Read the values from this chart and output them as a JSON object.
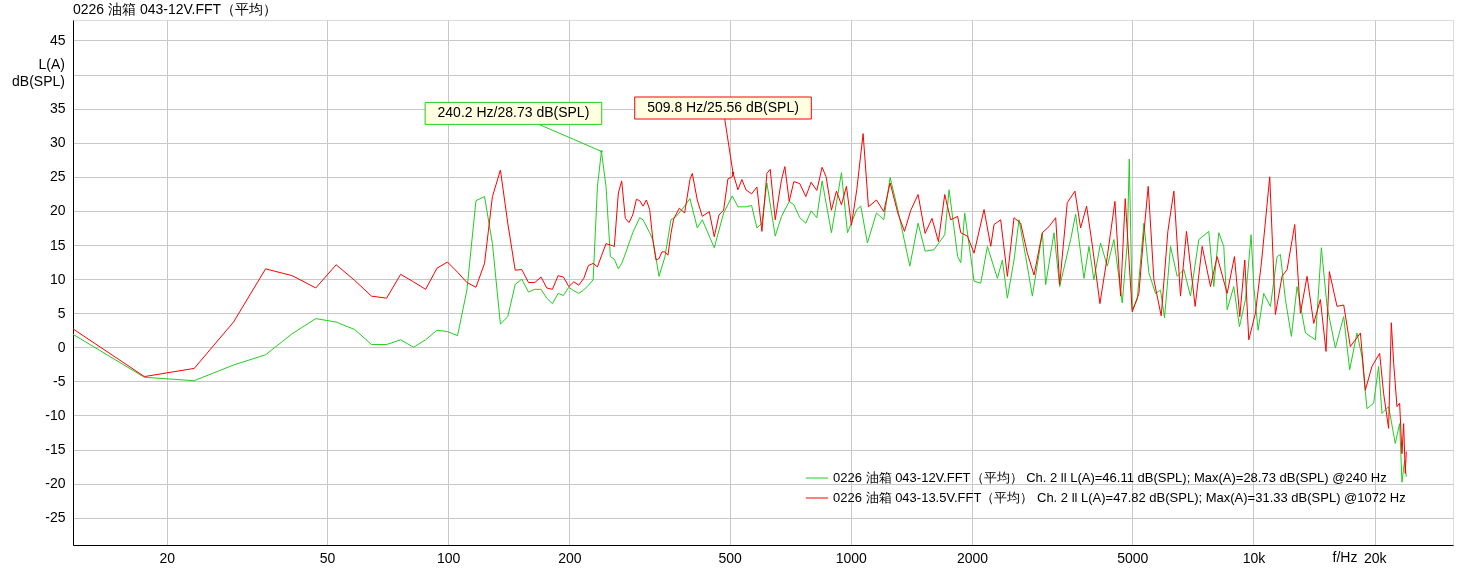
{
  "chart_data": {
    "type": "line",
    "title": "0226 油箱  043-12V.FFT（平均）",
    "xlabel": "f/Hz",
    "ylabel": "L(A) dB(SPL)",
    "xlim": [
      11.7,
      31300
    ],
    "ylim": [
      -29,
      48
    ],
    "log": "x",
    "grid": true,
    "legend": "bottom right",
    "xticks": [
      20,
      50,
      100,
      200,
      500,
      1000,
      2000,
      5000,
      {
        "value": 10000,
        "label": "10k"
      },
      {
        "value": 20000,
        "label": "20k"
      }
    ],
    "yticks": [
      -25,
      -20,
      -15,
      -10,
      -5,
      0,
      5,
      10,
      15,
      20,
      25,
      30,
      35,
      {
        "value": 40,
        "label": null
      },
      45
    ],
    "series": [
      {
        "name": "0226 油箱  043-12V.FFT（平均）  Ch. 2 ll L(A)=46.11 dB(SPL); Max(A)=28.73 dB(SPL) @240 Hz",
        "color": "#22cc22",
        "x": [
          11.7,
          17.6,
          23.4,
          29.3,
          35.2,
          41.0,
          46.9,
          52.7,
          58.6,
          64.5,
          70.3,
          76.2,
          82.0,
          87.9,
          93.8,
          99.6,
          105.5,
          111.3,
          117.2,
          123.1,
          128.8,
          134.8,
          140.6,
          146.7,
          152.3,
          158.3,
          164.1,
          170.1,
          175.7,
          181.5,
          187.5,
          193.3,
          199.3,
          205.1,
          211.0,
          217.1,
          223.0,
          229.1,
          234.8,
          240.2,
          246.6,
          252.8,
          258.6,
          264.6,
          269.7,
          275.4,
          287.3,
          299.0,
          304.7,
          316.5,
          322.6,
          333.9,
          345.5,
          357.5,
          368.6,
          380.7,
          398.5,
          415.6,
          427.6,
          445.1,
          458.0,
          483.1,
          507.6,
          524.3,
          548.8,
          566.9,
          584.4,
          601.4,
          618.8,
          648.9,
          672.8,
          703.0,
          721.9,
          746.9,
          773.0,
          796.9,
          823.2,
          848.5,
          895.0,
          947.7,
          981,
          1034.6,
          1058.5,
          1099.6,
          1157.7,
          1207.2,
          1252,
          1308,
          1401,
          1469,
          1529,
          1609,
          1711,
          1754,
          1842,
          1875,
          1918,
          1985,
          2023,
          2102,
          2184,
          2312,
          2379,
          2448,
          2543,
          2616,
          2718,
          2824,
          2990,
          3047,
          3196,
          3301,
          3515,
          3617,
          3793,
          3904,
          4015,
          4171,
          4334,
          4502,
          4722,
          4859,
          4915,
          4999,
          5144,
          5344,
          5499,
          5712,
          5877,
          6013,
          6223,
          6465,
          6716,
          6975,
          7316,
          7746,
          7970,
          8201,
          8438,
          8603,
          8934,
          9230,
          9552,
          9865,
          10018,
          10268,
          10606,
          11018,
          11445,
          11664,
          12003,
          12422,
          12832,
          13457,
          14249,
          14743,
          15235,
          15974,
          16753,
          17334,
          18076,
          18600,
          19138,
          19883,
          20458,
          20853,
          21660,
          22500,
          23068,
          23379,
          23739,
          23963
        ],
        "values": [
          1.9,
          -4.4,
          -4.9,
          -2.6,
          -1.1,
          2.0,
          4.2,
          3.7,
          2.6,
          0.4,
          0.4,
          1.1,
          0.0,
          1.1,
          2.5,
          2.3,
          1.7,
          8.4,
          21.5,
          22.1,
          15.2,
          3.4,
          4.5,
          9.2,
          10.0,
          8.1,
          8.5,
          8.5,
          7.2,
          6.4,
          7.9,
          7.6,
          8.8,
          8.3,
          7.9,
          8.4,
          9.1,
          9.9,
          23.6,
          28.73,
          23.6,
          13.3,
          12.9,
          11.5,
          12.3,
          13.7,
          16.8,
          19.0,
          18.7,
          16.8,
          15.7,
          10.4,
          13.3,
          18.7,
          19.2,
          20.2,
          21.8,
          17.5,
          18.7,
          16.3,
          14.6,
          19.7,
          22.2,
          20.6,
          20.6,
          20.8,
          17.5,
          18.2,
          24.1,
          16.3,
          19.2,
          21.4,
          20.9,
          19.0,
          18.2,
          20.0,
          19.0,
          24.4,
          16.8,
          25.6,
          16.8,
          20.2,
          20.7,
          15.3,
          19.7,
          18.7,
          24.9,
          20.2,
          11.9,
          18.2,
          14.1,
          14.3,
          16.5,
          23.1,
          13.3,
          12.4,
          19.7,
          13.3,
          9.7,
          9.4,
          14.8,
          10.1,
          12.8,
          7.2,
          12.8,
          18.7,
          13.3,
          7.5,
          16.8,
          9.2,
          16.8,
          8.9,
          15.8,
          19.5,
          10.1,
          14.8,
          9.9,
          15.3,
          11.9,
          15.8,
          6.5,
          15.3,
          27.6,
          5.5,
          7.0,
          18.2,
          10.9,
          7.9,
          8.4,
          4.3,
          14.8,
          10.4,
          11.4,
          7.5,
          15.8,
          17.0,
          8.9,
          16.8,
          14.8,
          5.5,
          8.9,
          3.0,
          7.0,
          16.5,
          8.9,
          2.5,
          7.9,
          6.0,
          13.3,
          13.6,
          7.0,
          1.6,
          8.9,
          2.1,
          1.1,
          14.6,
          6.0,
          -0.1,
          4.5,
          -3.3,
          2.1,
          -1.4,
          -9.0,
          -8.2,
          -2.8,
          -9.7,
          -8.7,
          -14.1,
          -11.2,
          -19.8,
          -16.6,
          -19.0
        ]
      },
      {
        "name": "0226 油箱  043-13.5V.FFT（平均）  Ch. 2 ll L(A)=47.82 dB(SPL); Max(A)=31.33 dB(SPL) @1072 Hz",
        "color": "#ff0000",
        "x": [
          11.7,
          17.6,
          23.4,
          29.3,
          35.2,
          41.0,
          46.9,
          52.7,
          58.6,
          64.5,
          70.3,
          76.2,
          82.0,
          87.9,
          93.8,
          99.6,
          105.5,
          111.3,
          117.2,
          123.1,
          128.8,
          134.8,
          140.6,
          146.7,
          152.3,
          158.3,
          164.1,
          170.1,
          175.7,
          181.5,
          187.5,
          193.3,
          199.3,
          205.1,
          211.0,
          217.1,
          223.0,
          229.1,
          234.8,
          240.6,
          246.6,
          252.8,
          258.6,
          264.6,
          269.7,
          275.4,
          281.3,
          287.3,
          293.4,
          299.0,
          304.7,
          310.6,
          316.5,
          322.6,
          328.2,
          333.9,
          339.6,
          345.5,
          351.4,
          357.5,
          363.0,
          375.0,
          386.6,
          398.5,
          403.9,
          415.6,
          427.6,
          445.1,
          458.0,
          470.4,
          483.1,
          495.2,
          507.6,
          509.8,
          524.3,
          536.4,
          548.8,
          566.9,
          584.4,
          601.4,
          618.8,
          630.6,
          648.9,
          672.8,
          685.7,
          703.0,
          721.9,
          746.9,
          773.0,
          796.9,
          823.2,
          848.5,
          868.2,
          895.0,
          920.9,
          947.7,
          975.2,
          1003.5,
          1034.6,
          1072.8,
          1105.9,
          1157.7,
          1207.2,
          1252,
          1308,
          1359,
          1409,
          1469,
          1529,
          1591,
          1650,
          1711,
          1770,
          1842,
          1875,
          1948,
          2023,
          2142,
          2226,
          2268,
          2356,
          2448,
          2543,
          2641,
          2744,
          2851,
          2990,
          3106,
          3227,
          3301,
          3448,
          3603,
          3721,
          3851,
          3978,
          4156,
          4334,
          4528,
          4677,
          4803,
          4999,
          5193,
          5344,
          5478,
          5658,
          5900,
          6129,
          6343,
          6588,
          6818,
          7164,
          7458,
          7821,
          8124,
          8603,
          8969,
          9247,
          9515,
          9736,
          10113,
          10466,
          10975,
          11335,
          11776,
          12120,
          12662,
          13077,
          13586,
          14112,
          14662,
          15142,
          15434,
          16126,
          16753,
          17402,
          18433,
          18958,
          19693,
          20576,
          21051,
          21660,
          21994,
          22300,
          22719,
          23068,
          23379,
          23601,
          23824,
          23963
        ],
        "values": [
          2.7,
          -4.3,
          -3.1,
          3.7,
          11.5,
          10.5,
          8.7,
          12.1,
          9.8,
          7.5,
          7.2,
          10.7,
          9.6,
          8.5,
          11.6,
          12.5,
          11.0,
          9.5,
          8.8,
          12.3,
          22.1,
          26.0,
          18.2,
          11.3,
          11.4,
          9.5,
          9.5,
          10.3,
          8.7,
          8.5,
          10.5,
          10.3,
          8.9,
          9.6,
          9.1,
          10.1,
          12.0,
          12.3,
          11.8,
          13.5,
          15.2,
          15.0,
          14.8,
          22.6,
          24.4,
          18.9,
          18.3,
          19.4,
          21.7,
          21.5,
          20.7,
          21.6,
          20.2,
          15.6,
          12.8,
          13.0,
          14.0,
          14.0,
          13.5,
          16.7,
          18.8,
          20.4,
          19.7,
          24.6,
          25.5,
          21.6,
          19.2,
          19.9,
          16.2,
          19.4,
          20.1,
          24.7,
          25.0,
          25.56,
          23.1,
          24.6,
          23.1,
          22.5,
          23.5,
          17.0,
          25.5,
          26.1,
          18.7,
          24.6,
          26.5,
          21.4,
          24.3,
          24.0,
          22.1,
          24.2,
          23.0,
          26.4,
          25.0,
          20.1,
          22.9,
          20.9,
          23.6,
          17.9,
          23.1,
          31.33,
          20.6,
          21.6,
          19.9,
          24.1,
          19.7,
          17.0,
          20.1,
          22.4,
          16.7,
          18.9,
          15.5,
          22.4,
          18.7,
          19.2,
          16.8,
          16.3,
          13.8,
          20.2,
          14.8,
          18.0,
          18.7,
          10.4,
          19.0,
          18.2,
          13.8,
          10.6,
          16.8,
          17.7,
          19.0,
          9.2,
          21.2,
          22.9,
          17.5,
          20.7,
          15.0,
          6.4,
          13.3,
          21.4,
          7.5,
          21.8,
          5.2,
          7.9,
          16.8,
          23.6,
          9.9,
          4.6,
          17.0,
          22.9,
          7.5,
          17.0,
          6.0,
          14.8,
          8.9,
          13.3,
          7.9,
          13.3,
          4.5,
          12.8,
          1.1,
          5.0,
          12.4,
          25.0,
          4.8,
          10.4,
          11.4,
          18.0,
          5.0,
          10.4,
          3.5,
          7.0,
          -0.6,
          11.1,
          6.0,
          6.2,
          0.1,
          2.1,
          -6.3,
          -2.8,
          -0.9,
          -6.8,
          -11.9,
          3.6,
          -2.4,
          -8.7,
          -8.2,
          -15.6,
          -11.2,
          -18.5,
          -15.3
        ]
      }
    ],
    "annotations": [
      {
        "text": "240.2 Hz/28.73 dB(SPL)",
        "x": 240.2,
        "y": 28.73
      },
      {
        "text": "509.8 Hz/25.56 dB(SPL)",
        "x": 509.8,
        "y": 25.56
      }
    ]
  }
}
